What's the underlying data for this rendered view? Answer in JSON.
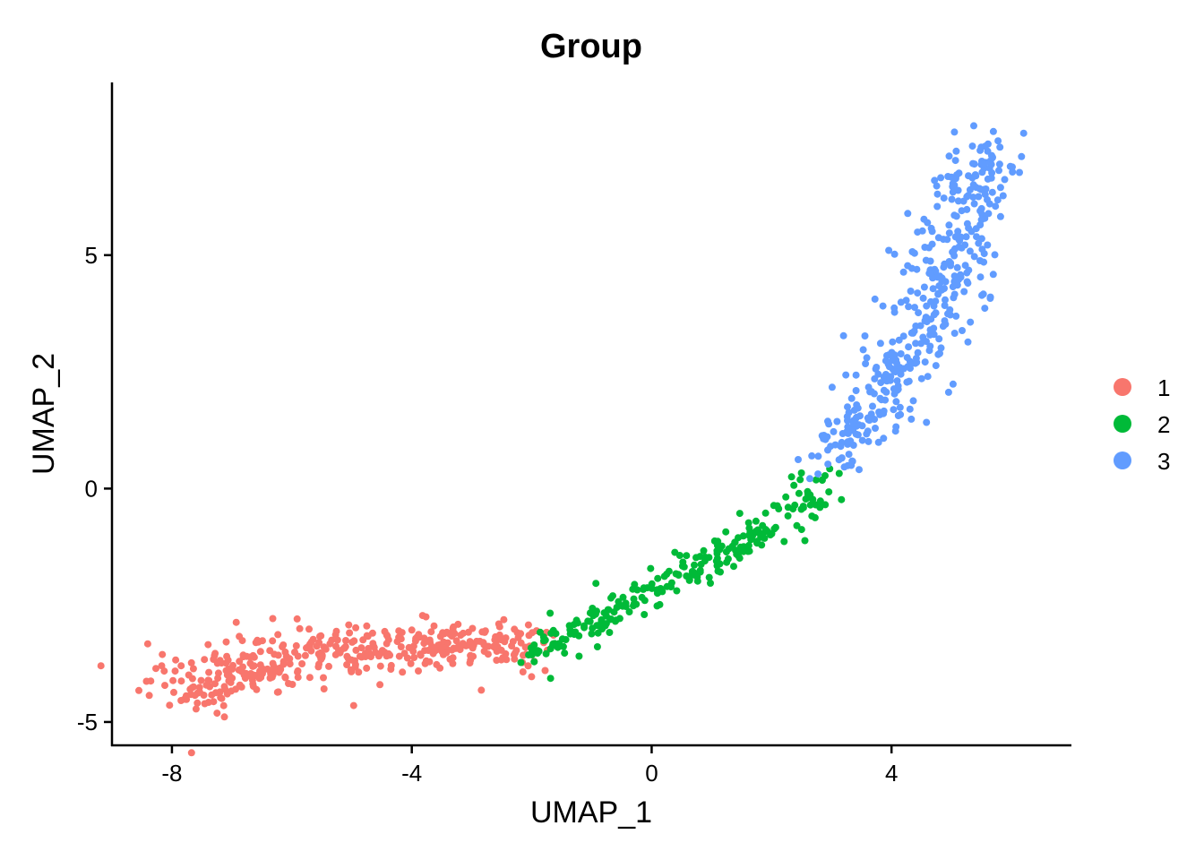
{
  "chart_data": {
    "type": "scatter",
    "title": "Group",
    "xlabel": "UMAP_1",
    "ylabel": "UMAP_2",
    "xlim": [
      -9.0,
      7.0
    ],
    "ylim": [
      -5.5,
      8.7
    ],
    "xticks": [
      -8,
      -4,
      0,
      4
    ],
    "yticks": [
      -5,
      0,
      5
    ],
    "grid": false,
    "legend_position": "right",
    "series": [
      {
        "name": "1",
        "color": "#F8766D",
        "points_approx": 420,
        "trajectory": [
          [
            -8.2,
            -4.1
          ],
          [
            -7.5,
            -4.2
          ],
          [
            -6.8,
            -3.9
          ],
          [
            -6.0,
            -3.7
          ],
          [
            -5.2,
            -3.4
          ],
          [
            -4.4,
            -3.5
          ],
          [
            -3.6,
            -3.4
          ],
          [
            -2.8,
            -3.3
          ],
          [
            -2.0,
            -3.4
          ]
        ],
        "spread": [
          0.45,
          0.4,
          0.35,
          0.35,
          0.35,
          0.3,
          0.3,
          0.3,
          0.3
        ]
      },
      {
        "name": "2",
        "color": "#00BA38",
        "points_approx": 250,
        "trajectory": [
          [
            -2.0,
            -3.5
          ],
          [
            -1.0,
            -2.9
          ],
          [
            0.0,
            -2.2
          ],
          [
            1.0,
            -1.5
          ],
          [
            2.0,
            -0.8
          ],
          [
            3.0,
            0.1
          ]
        ],
        "spread": [
          0.22,
          0.2,
          0.18,
          0.2,
          0.25,
          0.28
        ]
      },
      {
        "name": "3",
        "color": "#619CFF",
        "points_approx": 420,
        "trajectory": [
          [
            3.0,
            0.6
          ],
          [
            3.6,
            1.6
          ],
          [
            4.2,
            2.6
          ],
          [
            4.6,
            3.8
          ],
          [
            5.0,
            5.0
          ],
          [
            5.3,
            6.2
          ],
          [
            5.7,
            7.2
          ]
        ],
        "spread": [
          0.3,
          0.35,
          0.4,
          0.45,
          0.45,
          0.4,
          0.4
        ]
      }
    ]
  }
}
